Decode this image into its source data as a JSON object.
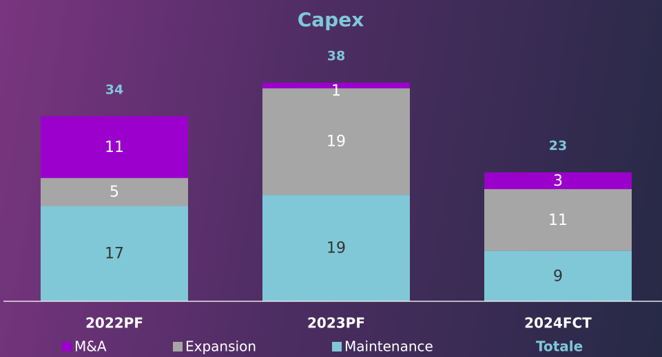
{
  "chart_data": {
    "type": "stacked_bar",
    "title": "Capex",
    "categories": [
      "2022PF",
      "2023PF",
      "2024FCT"
    ],
    "series": [
      {
        "name": "Maintenance",
        "color": "#80c8d8",
        "values": [
          17,
          19,
          9
        ]
      },
      {
        "name": "Expansion",
        "color": "#a6a6a6",
        "values": [
          5,
          19,
          11
        ]
      },
      {
        "name": "M&A",
        "color": "#9b00cc",
        "values": [
          11,
          1,
          3
        ]
      }
    ],
    "totals": {
      "name": "Totale",
      "color": "#7fc8d8",
      "values": [
        34,
        38,
        23
      ]
    },
    "ylim": [
      0,
      40
    ]
  }
}
